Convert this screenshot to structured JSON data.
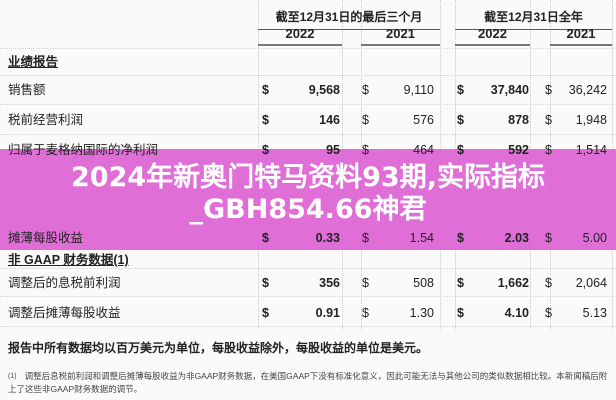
{
  "header": {
    "group_q": "截至12月31日的最后三个月",
    "group_fy": "截至12月31日全年",
    "years": [
      "2022",
      "2021",
      "2022",
      "2021"
    ]
  },
  "section1": "业绩报告",
  "rows1": [
    {
      "label": "销售额",
      "values": [
        "9,568",
        "9,110",
        "37,840",
        "36,242"
      ]
    },
    {
      "label": "税前经营利润",
      "values": [
        "146",
        "576",
        "878",
        "1,948"
      ]
    },
    {
      "label": "归属于麦格纳国际的净利润",
      "values": [
        "95",
        "464",
        "592",
        "1,514"
      ]
    },
    {
      "label": "摊薄每股收益",
      "values": [
        "0.33",
        "1.54",
        "2.03",
        "5.00"
      ]
    }
  ],
  "section2": "非 GAAP 财务数据(1)",
  "rows2": [
    {
      "label": "调整后的息税前利润",
      "values": [
        "356",
        "508",
        "1,662",
        "2,064"
      ]
    },
    {
      "label": "调整后摊薄每股收益",
      "values": [
        "0.91",
        "1.30",
        "4.10",
        "5.13"
      ]
    }
  ],
  "currency": "$",
  "note": "报告中所有数据均以百万美元为单位，每股收益除外，每股收益的单位是美元。",
  "footnote_mark": "(1)",
  "footnote": "调整后息税前利润和调整后摊薄每股收益为非GAAP财务数据，在美国GAAP下没有标准化意义，因此可能无法与其他公司的类似数据相比较。本新闻稿后附上了这些非GAAP财务数据的调节。",
  "overlay": {
    "title_line1": "2024年新奥门特马资料93期,实际指标",
    "title_line2": "_GBH854.66神君",
    "color": "#dc5ad2"
  }
}
